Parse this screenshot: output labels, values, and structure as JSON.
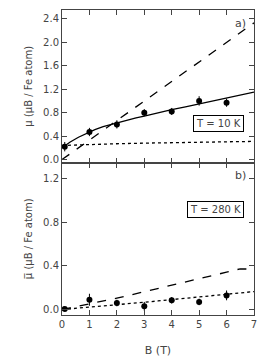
{
  "chart_data": [
    {
      "type": "line",
      "annotations": [
        "a)",
        "T = 10 K"
      ],
      "ylabel": "μ (μB / Fe atom)",
      "xlim": [
        0,
        7
      ],
      "xticks": [
        0,
        1,
        2,
        3,
        4,
        5,
        6,
        7
      ],
      "ylim": [
        -0.05,
        2.55
      ],
      "yticks": [
        {
          "value": 0.0,
          "label": "0.0"
        },
        0.4,
        0.8,
        1.2,
        1.6,
        {
          "value": 2.0,
          "label": "2.0"
        },
        2.4
      ],
      "grid": false,
      "tick_labels": "y",
      "series": [
        {
          "type": "line",
          "line_style": "solid",
          "color": "#000000",
          "x": [
            0.0,
            0.3,
            0.6,
            0.9,
            1.2,
            1.5,
            1.8,
            2.1,
            2.4,
            2.7,
            3.0,
            3.5,
            4.0,
            4.5,
            5.0,
            5.5,
            6.0,
            6.5,
            7.0
          ],
          "values": [
            0.2,
            0.3,
            0.38,
            0.45,
            0.51,
            0.56,
            0.6,
            0.64,
            0.68,
            0.71,
            0.74,
            0.8,
            0.85,
            0.9,
            0.95,
            1.0,
            1.05,
            1.1,
            1.15
          ]
        },
        {
          "type": "line",
          "line_style": "dashed",
          "color": "#000000",
          "x": [
            0.0,
            0.3,
            0.6,
            0.9,
            1.2,
            1.5,
            1.8,
            2.1,
            2.4,
            2.7,
            3.0,
            3.5,
            4.0,
            4.5,
            5.0,
            5.5,
            6.0,
            6.5,
            7.0
          ],
          "values": [
            0.0,
            0.1,
            0.2,
            0.3,
            0.4,
            0.5,
            0.6,
            0.7,
            0.8,
            0.9,
            1.0,
            1.17,
            1.33,
            1.5,
            1.67,
            1.83,
            2.0,
            2.17,
            2.33
          ]
        },
        {
          "type": "line",
          "line_style": "dotted",
          "color": "#000000",
          "x": [
            0.0,
            1.0,
            2.0,
            3.0,
            4.0,
            5.0,
            6.0,
            7.0
          ],
          "values": [
            0.24,
            0.26,
            0.27,
            0.28,
            0.29,
            0.29,
            0.3,
            0.31
          ]
        },
        {
          "type": "scatter",
          "marker": "circle",
          "color": "#000000",
          "x": [
            0.1,
            1.0,
            2.0,
            3.0,
            4.0,
            5.0,
            6.0
          ],
          "values": [
            0.22,
            0.47,
            0.6,
            0.8,
            0.82,
            1.0,
            0.97
          ],
          "yerr": [
            0.08,
            0.07,
            0.07,
            0.06,
            0.06,
            0.08,
            0.07
          ]
        }
      ]
    },
    {
      "type": "line",
      "annotations": [
        "b)",
        "T = 280 K"
      ],
      "xlabel": "B (T)",
      "ylabel": "μ̅ (μB / Fe atom)",
      "xlim": [
        0,
        7
      ],
      "xticks": [
        0,
        1,
        2,
        3,
        4,
        5,
        6,
        7
      ],
      "ylim": [
        -0.05,
        1.35
      ],
      "yticks": [
        {
          "value": 0.0,
          "label": "0.0"
        },
        0.4,
        0.8,
        1.2
      ],
      "grid": false,
      "series": [
        {
          "type": "line",
          "line_style": "dashed",
          "color": "#000000",
          "x": [
            0.0,
            0.5,
            1.0,
            1.5,
            2.0,
            2.5,
            3.0,
            3.5,
            4.0,
            4.5,
            5.0,
            5.5,
            6.0,
            6.5,
            7.0
          ],
          "values": [
            0.0,
            0.025,
            0.05,
            0.077,
            0.105,
            0.134,
            0.163,
            0.193,
            0.222,
            0.252,
            0.282,
            0.313,
            0.343,
            0.374,
            0.37
          ]
        },
        {
          "type": "line",
          "line_style": "dotted",
          "color": "#000000",
          "x": [
            0.0,
            0.5,
            1.0,
            1.5,
            2.0,
            2.5,
            3.0,
            3.5,
            4.0,
            4.5,
            5.0,
            5.5,
            6.0,
            6.5,
            7.0
          ],
          "values": [
            0.0,
            0.01,
            0.021,
            0.032,
            0.043,
            0.055,
            0.067,
            0.079,
            0.091,
            0.103,
            0.115,
            0.128,
            0.14,
            0.152,
            0.165
          ]
        },
        {
          "type": "scatter",
          "marker": "circle",
          "color": "#000000",
          "x": [
            0.1,
            1.0,
            2.0,
            3.0,
            4.0,
            5.0,
            6.0
          ],
          "values": [
            0.005,
            0.09,
            0.06,
            0.03,
            0.085,
            0.07,
            0.13
          ],
          "yerr": [
            0.015,
            0.055,
            0.03,
            0.04,
            0.03,
            0.03,
            0.045
          ]
        }
      ]
    }
  ]
}
